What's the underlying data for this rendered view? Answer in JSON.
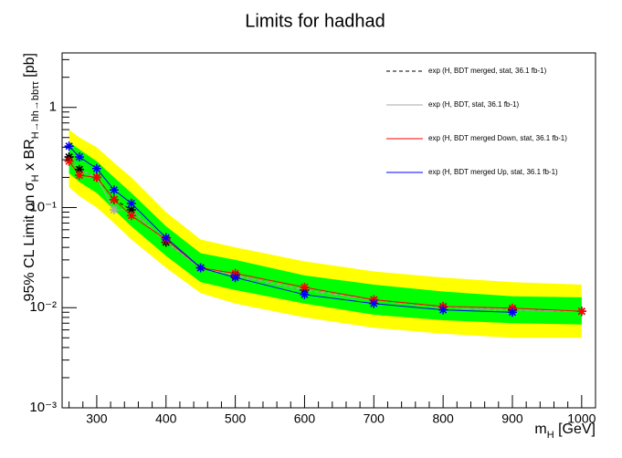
{
  "chart_data": {
    "type": "line",
    "title": "Limits for hadhad",
    "x_label": [
      {
        "text": "m"
      },
      {
        "text": "H",
        "sub": true
      },
      {
        "text": " [GeV]"
      }
    ],
    "y_label": [
      {
        "text": "95% CL Limit on σ"
      },
      {
        "text": "H",
        "sub": true
      },
      {
        "text": " x BR"
      },
      {
        "text": "H→hh→bbττ",
        "sub": true
      },
      {
        "text": " [pb]"
      }
    ],
    "x": [
      260,
      275,
      300,
      325,
      350,
      400,
      450,
      500,
      600,
      700,
      800,
      900,
      1000
    ],
    "xlim": [
      250,
      1020
    ],
    "xticks": [
      300,
      400,
      500,
      600,
      700,
      800,
      900,
      1000
    ],
    "ylim": [
      0.001,
      3.5
    ],
    "log_y": true,
    "yticks": [
      {
        "value": 0.001,
        "label": "10⁻³"
      },
      {
        "value": 0.01,
        "label": "10⁻²"
      },
      {
        "value": 0.1,
        "label": "10⁻¹"
      },
      1
    ],
    "grid": false,
    "legend": "top-right",
    "bands": [
      {
        "color": "#ffff00",
        "lower": [
          0.16,
          0.13,
          0.1,
          0.07,
          0.048,
          0.025,
          0.014,
          0.011,
          0.008,
          0.0063,
          0.0055,
          0.005,
          0.005
        ],
        "upper": [
          0.6,
          0.5,
          0.4,
          0.28,
          0.2,
          0.09,
          0.048,
          0.04,
          0.029,
          0.023,
          0.02,
          0.018,
          0.017
        ]
      },
      {
        "color": "#00ff00",
        "lower": [
          0.22,
          0.18,
          0.14,
          0.095,
          0.065,
          0.033,
          0.018,
          0.015,
          0.011,
          0.0085,
          0.0075,
          0.007,
          0.0068
        ],
        "upper": [
          0.45,
          0.38,
          0.29,
          0.2,
          0.14,
          0.065,
          0.035,
          0.03,
          0.021,
          0.017,
          0.0145,
          0.013,
          0.0127
        ]
      }
    ],
    "series": [
      {
        "name": "exp (H, BDT merged, stat, 36.1 fb-1)",
        "color": "#000000",
        "dashed": true,
        "values": [
          0.32,
          0.24,
          0.2,
          0.12,
          0.095,
          0.045,
          0.025,
          0.021,
          0.015,
          0.012,
          0.0102,
          0.0095,
          0.0092
        ]
      },
      {
        "name": "exp (H, BDT, stat, 36.1 fb-1)",
        "color": "#aaaaaa",
        "dashed": false,
        "values": [
          0.32,
          0.24,
          0.2,
          0.095,
          0.095,
          0.045,
          0.025,
          0.021,
          0.015,
          0.012,
          0.0102,
          0.0095,
          0.0092
        ]
      },
      {
        "name": "exp (H, BDT merged Down, stat, 36.1 fb-1)",
        "color": "#ff0000",
        "dashed": false,
        "values": [
          0.29,
          0.21,
          0.2,
          0.12,
          0.083,
          0.048,
          0.025,
          0.022,
          0.016,
          0.012,
          0.0103,
          0.0099,
          0.0092
        ]
      },
      {
        "name": "exp (H, BDT merged Up, stat, 36.1 fb-1)",
        "color": "#0000ff",
        "dashed": false,
        "values": [
          0.41,
          0.32,
          0.245,
          0.15,
          0.11,
          0.05,
          0.025,
          0.02,
          0.0135,
          0.011,
          0.0095,
          0.009,
          null
        ]
      }
    ]
  }
}
